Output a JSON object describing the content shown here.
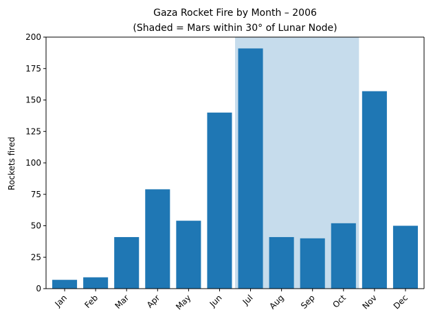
{
  "chart_data": {
    "type": "bar",
    "title_line1": "Gaza Rocket Fire by Month – 2006",
    "title_line2": "(Shaded = Mars within 30° of Lunar Node)",
    "xlabel": "",
    "ylabel": "Rockets fired",
    "categories": [
      "Jan",
      "Feb",
      "Mar",
      "Apr",
      "May",
      "Jun",
      "Jul",
      "Aug",
      "Sep",
      "Oct",
      "Nov",
      "Dec"
    ],
    "values": [
      7,
      9,
      41,
      79,
      54,
      140,
      191,
      41,
      40,
      52,
      157,
      50
    ],
    "ylim": [
      0,
      200
    ],
    "yticks": [
      0,
      25,
      50,
      75,
      100,
      125,
      150,
      175,
      200
    ],
    "shaded_range": {
      "from": "Jul",
      "to": "Oct"
    },
    "grid": false,
    "colors": {
      "bar": "#1f77b4",
      "shade": "#c6dcec"
    }
  }
}
